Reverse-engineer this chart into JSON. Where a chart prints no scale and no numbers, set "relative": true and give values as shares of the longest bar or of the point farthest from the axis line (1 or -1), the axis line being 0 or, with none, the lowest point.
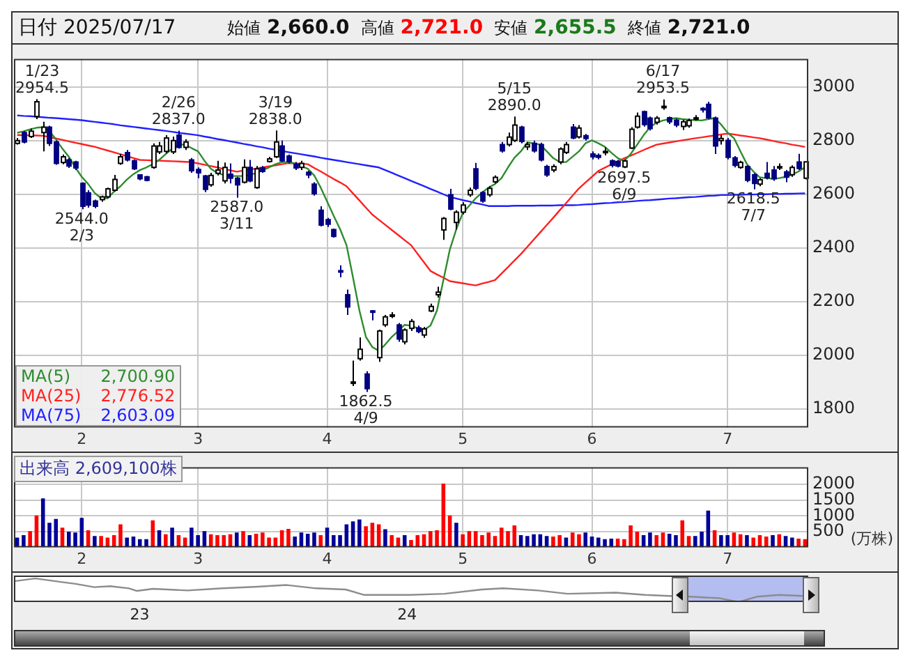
{
  "chart_data": [
    {
      "type": "candlestick",
      "title": "日付 2025/07/17",
      "annotations": [
        "始値 2,660.0",
        "高値 2,721.0",
        "安値 2,655.5",
        "終値 2,721.0",
        "2,700.90",
        "2,776.52",
        "2,603.09",
        {
          "text": "1/23 2954.5",
          "y": 2954.5
        },
        {
          "text": "2544.0 2/3",
          "y": 2544
        },
        {
          "text": "2/26 2837.0",
          "y": 2837
        },
        {
          "text": "2587.0 3/11",
          "y": 2587
        },
        {
          "text": "3/19 2838.0",
          "y": 2838
        },
        {
          "text": "1862.5 4/9",
          "y": 1862.5
        },
        {
          "text": "5/15 2890.0",
          "y": 2890
        },
        {
          "text": "2697.5 6/9",
          "y": 2697.5
        },
        {
          "text": "6/17 2953.5",
          "y": 2953.5
        },
        {
          "text": "2618.5 7/7",
          "y": 2618.5
        }
      ],
      "categories": [
        null,
        null,
        null,
        null,
        null,
        null,
        null,
        null,
        null,
        null,
        "2",
        null,
        null,
        null,
        null,
        null,
        null,
        null,
        null,
        null,
        null,
        null,
        null,
        null,
        null,
        null,
        null,
        null,
        "3",
        null,
        null,
        null,
        null,
        null,
        null,
        null,
        null,
        null,
        null,
        null,
        null,
        null,
        null,
        null,
        null,
        null,
        null,
        null,
        "4",
        null,
        null,
        null,
        null,
        null,
        null,
        null,
        null,
        null,
        null,
        null,
        null,
        null,
        null,
        null,
        null,
        null,
        null,
        null,
        null,
        "5",
        null,
        null,
        null,
        null,
        null,
        null,
        null,
        null,
        null,
        null,
        null,
        null,
        null,
        null,
        null,
        null,
        null,
        null,
        null,
        "6",
        null,
        null,
        null,
        null,
        null,
        null,
        null,
        null,
        null,
        null,
        null,
        null,
        null,
        null,
        null,
        null,
        null,
        null,
        null,
        null,
        "7",
        null,
        null,
        null,
        null,
        null,
        null,
        null,
        null,
        null,
        null,
        null,
        null
      ],
      "ohlc": [
        [
          2790,
          2810,
          2785,
          2800
        ],
        [
          2830,
          2835,
          2790,
          2795
        ],
        [
          2815,
          2845,
          2810,
          2835
        ],
        [
          2890,
          2954.5,
          2880,
          2945
        ],
        [
          2830,
          2870,
          2760,
          2850
        ],
        [
          2850,
          2855,
          2780,
          2790
        ],
        [
          2795,
          2800,
          2710,
          2715
        ],
        [
          2718,
          2748,
          2712,
          2740
        ],
        [
          2728,
          2735,
          2698,
          2705
        ],
        [
          2720,
          2725,
          2690,
          2698
        ],
        [
          2640,
          2645,
          2544,
          2555
        ],
        [
          2605,
          2615,
          2550,
          2560
        ],
        [
          2575,
          2580,
          2548,
          2555
        ],
        [
          2580,
          2595,
          2572,
          2590
        ],
        [
          2590,
          2625,
          2585,
          2620
        ],
        [
          2615,
          2672,
          2610,
          2655
        ],
        [
          2715,
          2750,
          2710,
          2740
        ],
        [
          2755,
          2765,
          2722,
          2728
        ],
        [
          2725,
          2730,
          2690,
          2695
        ],
        [
          2672,
          2675,
          2652,
          2658
        ],
        [
          2665,
          2668,
          2648,
          2652
        ],
        [
          2700,
          2790,
          2695,
          2780
        ],
        [
          2758,
          2795,
          2750,
          2780
        ],
        [
          2760,
          2820,
          2752,
          2810
        ],
        [
          2758,
          2815,
          2750,
          2800
        ],
        [
          2820,
          2837,
          2770,
          2775
        ],
        [
          2775,
          2805,
          2765,
          2795
        ],
        [
          2728,
          2735,
          2680,
          2688
        ],
        [
          2692,
          2700,
          2660,
          2680
        ],
        [
          2668,
          2672,
          2608,
          2618
        ],
        [
          2635,
          2680,
          2628,
          2670
        ],
        [
          2678,
          2725,
          2670,
          2690
        ],
        [
          2650,
          2718,
          2640,
          2700
        ],
        [
          2675,
          2715,
          2640,
          2660
        ],
        [
          2660,
          2665,
          2587,
          2635
        ],
        [
          2645,
          2730,
          2640,
          2700
        ],
        [
          2700,
          2728,
          2645,
          2650
        ],
        [
          2625,
          2705,
          2620,
          2695
        ],
        [
          2698,
          2705,
          2680,
          2685
        ],
        [
          2722,
          2740,
          2718,
          2732
        ],
        [
          2740,
          2838,
          2735,
          2795
        ],
        [
          2780,
          2800,
          2720,
          2725
        ],
        [
          2742,
          2748,
          2715,
          2722
        ],
        [
          2712,
          2720,
          2690,
          2698
        ],
        [
          2700,
          2725,
          2690,
          2715
        ],
        [
          2682,
          2688,
          2660,
          2672
        ],
        [
          2638,
          2645,
          2595,
          2602
        ],
        [
          2540,
          2555,
          2480,
          2485
        ],
        [
          2505,
          2512,
          2478,
          2488
        ],
        [
          2468,
          2472,
          2438,
          2443
        ],
        [
          2315,
          2335,
          2290,
          2310
        ],
        [
          2225,
          2245,
          2150,
          2180
        ],
        [
          1895,
          1980,
          1885,
          1900
        ],
        [
          1987,
          2066,
          1980,
          2022
        ],
        [
          1930,
          1940,
          1862.5,
          1875
        ],
        [
          2165,
          2168,
          2130,
          2162
        ],
        [
          1991,
          2095,
          1975,
          2090
        ],
        [
          2113,
          2150,
          2105,
          2143
        ],
        [
          2148,
          2160,
          2138,
          2150
        ],
        [
          2113,
          2120,
          2050,
          2060
        ],
        [
          2050,
          2100,
          2040,
          2094
        ],
        [
          2100,
          2135,
          2090,
          2126
        ],
        [
          2102,
          2110,
          2082,
          2088
        ],
        [
          2075,
          2105,
          2065,
          2098
        ],
        [
          2165,
          2192,
          2160,
          2182
        ],
        [
          2225,
          2255,
          2215,
          2235
        ],
        [
          2467,
          2515,
          2430,
          2510
        ],
        [
          2598,
          2620,
          2540,
          2545
        ],
        [
          2495,
          2540,
          2468,
          2533
        ],
        [
          2533,
          2570,
          2525,
          2560
        ],
        [
          2598,
          2625,
          2590,
          2615
        ],
        [
          2695,
          2717,
          2615,
          2622
        ],
        [
          2606,
          2612,
          2568,
          2575
        ],
        [
          2598,
          2630,
          2590,
          2622
        ],
        [
          2646,
          2670,
          2640,
          2663
        ],
        [
          2785,
          2795,
          2755,
          2762
        ],
        [
          2785,
          2830,
          2778,
          2813
        ],
        [
          2801,
          2890,
          2795,
          2858
        ],
        [
          2850,
          2855,
          2790,
          2797
        ],
        [
          2777,
          2795,
          2765,
          2785
        ],
        [
          2790,
          2800,
          2755,
          2762
        ],
        [
          2785,
          2792,
          2722,
          2728
        ],
        [
          2703,
          2710,
          2665,
          2672
        ],
        [
          2690,
          2712,
          2682,
          2703
        ],
        [
          2720,
          2775,
          2712,
          2769
        ],
        [
          2756,
          2795,
          2750,
          2785
        ],
        [
          2850,
          2862,
          2805,
          2810
        ],
        [
          2814,
          2858,
          2808,
          2847
        ],
        [
          2818,
          2825,
          2800,
          2808
        ],
        [
          2750,
          2760,
          2730,
          2740
        ],
        [
          2745,
          2752,
          2730,
          2738
        ],
        [
          2755,
          2775,
          2745,
          2760
        ],
        [
          2725,
          2730,
          2700,
          2708
        ],
        [
          2722,
          2728,
          2700,
          2705
        ],
        [
          2702,
          2730,
          2697.5,
          2724
        ],
        [
          2772,
          2850,
          2768,
          2842
        ],
        [
          2850,
          2905,
          2845,
          2891
        ],
        [
          2908,
          2912,
          2852,
          2860
        ],
        [
          2884,
          2890,
          2838,
          2845
        ],
        [
          2868,
          2892,
          2860,
          2884
        ],
        [
          2925,
          2953.5,
          2915,
          2928
        ],
        [
          2885,
          2890,
          2862,
          2870
        ],
        [
          2876,
          2882,
          2850,
          2858
        ],
        [
          2853,
          2878,
          2840,
          2870
        ],
        [
          2855,
          2882,
          2848,
          2875
        ],
        [
          2880,
          2895,
          2875,
          2885
        ],
        [
          2920,
          2925,
          2905,
          2915
        ],
        [
          2935,
          2945,
          2880,
          2885
        ],
        [
          2884,
          2890,
          2750,
          2780
        ],
        [
          2800,
          2820,
          2785,
          2808
        ],
        [
          2801,
          2810,
          2730,
          2738
        ],
        [
          2736,
          2742,
          2700,
          2708
        ],
        [
          2700,
          2725,
          2695,
          2719
        ],
        [
          2703,
          2708,
          2645,
          2652
        ],
        [
          2673,
          2678,
          2618.5,
          2640
        ],
        [
          2638,
          2660,
          2630,
          2654
        ],
        [
          2678,
          2720,
          2655,
          2662
        ],
        [
          2690,
          2705,
          2650,
          2658
        ],
        [
          2698,
          2715,
          2690,
          2703
        ],
        [
          2683,
          2690,
          2645,
          2664
        ],
        [
          2673,
          2708,
          2665,
          2700
        ],
        [
          2720,
          2751,
          2690,
          2696
        ],
        [
          2660,
          2721,
          2655.5,
          2721
        ]
      ],
      "colors": [
        "#ffffff",
        "#000080",
        "#ffffff",
        "#ffffff",
        "#ffffff",
        "#000080",
        "#000080",
        "#ffffff",
        "#000080",
        "#000080",
        "#000080",
        "#000080",
        "#000080",
        "#ffffff",
        "#ffffff",
        "#ffffff",
        "#ffffff",
        "#000080",
        "#000080",
        "#000080",
        "#000080",
        "#ffffff",
        "#ffffff",
        "#ffffff",
        "#ffffff",
        "#000080",
        "#ffffff",
        "#000080",
        "#000080",
        "#000080",
        "#ffffff",
        "#ffffff",
        "#ffffff",
        "#000080",
        "#000080",
        "#ffffff",
        "#000080",
        "#ffffff",
        "#000080",
        "#ffffff",
        "#ffffff",
        "#000080",
        "#000080",
        "#000080",
        "#ffffff",
        "#000080",
        "#000080",
        "#000080",
        "#000080",
        "#000080",
        "#000080",
        "#000080",
        "#ffffff",
        "#ffffff",
        "#000080",
        "#000080",
        "#ffffff",
        "#ffffff",
        "#ffffff",
        "#000080",
        "#ffffff",
        "#ffffff",
        "#000080",
        "#ffffff",
        "#ffffff",
        "#ffffff",
        "#ffffff",
        "#000080",
        "#ffffff",
        "#ffffff",
        "#ffffff",
        "#000080",
        "#000080",
        "#ffffff",
        "#ffffff",
        "#000080",
        "#ffffff",
        "#ffffff",
        "#000080",
        "#ffffff",
        "#000080",
        "#000080",
        "#000080",
        "#ffffff",
        "#ffffff",
        "#ffffff",
        "#000080",
        "#ffffff",
        "#000080",
        "#000080",
        "#000080",
        "#ffffff",
        "#000080",
        "#000080",
        "#ffffff",
        "#ffffff",
        "#ffffff",
        "#000080",
        "#000080",
        "#ffffff",
        "#ffffff",
        "#000080",
        "#000080",
        "#ffffff",
        "#ffffff",
        "#ffffff",
        "#000080",
        "#000080",
        "#000080",
        "#ffffff",
        "#000080",
        "#000080",
        "#ffffff",
        "#000080",
        "#000080",
        "#ffffff",
        "#000080",
        "#000080",
        "#ffffff",
        "#000080",
        "#ffffff",
        "#000080",
        "#ffffff"
      ],
      "series": [
        {
          "name": "MA(5)",
          "type": "line",
          "color": "#2e8b2e",
          "values": [
            2829,
            2835,
            2842,
            2848,
            2850,
            2835,
            2805,
            2770,
            2740,
            2700,
            2665,
            2638,
            2605,
            2585,
            2585,
            2610,
            2630,
            2655,
            2675,
            2690,
            2700,
            2712,
            2728,
            2750,
            2770,
            2785,
            2785,
            2772,
            2760,
            2725,
            2695,
            2679,
            2672,
            2668,
            2668,
            2668,
            2672,
            2679,
            2690,
            2700,
            2712,
            2720,
            2720,
            2715,
            2705,
            2695,
            2670,
            2625,
            2573,
            2520,
            2470,
            2410,
            2290,
            2166,
            2068,
            2030,
            2016,
            2040,
            2068,
            2090,
            2113,
            2110,
            2100,
            2094,
            2110,
            2166,
            2280,
            2394,
            2470,
            2530,
            2557,
            2585,
            2606,
            2625,
            2638,
            2660,
            2700,
            2736,
            2760,
            2793,
            2790,
            2785,
            2760,
            2735,
            2720,
            2720,
            2740,
            2760,
            2790,
            2801,
            2790,
            2777,
            2755,
            2735,
            2724,
            2750,
            2785,
            2820,
            2850,
            2867,
            2875,
            2880,
            2884,
            2880,
            2878,
            2876,
            2875,
            2880,
            2884,
            2860,
            2830,
            2809,
            2760,
            2712,
            2685,
            2663,
            2660,
            2658,
            2660,
            2665,
            2673,
            2685,
            2700.9
          ]
        },
        {
          "name": "MA(25)",
          "type": "line",
          "color": "#ff2020",
          "values": [
            2821,
            2820,
            2820,
            2819,
            2818,
            2813,
            2808,
            2803,
            2797,
            2792,
            2787,
            2782,
            2777,
            2770,
            2763,
            2756,
            2749,
            2742,
            2735,
            2728,
            2727,
            2726,
            2725,
            2724,
            2723,
            2722,
            2721,
            2720,
            2715,
            2710,
            2705,
            2700,
            2694,
            2689,
            2684,
            2688,
            2692,
            2696,
            2700,
            2704,
            2708,
            2712,
            2716,
            2715,
            2714,
            2712,
            2698,
            2685,
            2671,
            2657,
            2644,
            2630,
            2603,
            2577,
            2550,
            2524,
            2505,
            2486,
            2467,
            2448,
            2429,
            2410,
            2378,
            2346,
            2314,
            2301,
            2289,
            2276,
            2272,
            2268,
            2264,
            2260,
            2267,
            2273,
            2280,
            2304,
            2328,
            2353,
            2377,
            2404,
            2431,
            2458,
            2485,
            2512,
            2540,
            2567,
            2595,
            2622,
            2644,
            2665,
            2687,
            2699,
            2711,
            2722,
            2734,
            2744,
            2754,
            2765,
            2775,
            2785,
            2789,
            2793,
            2797,
            2801,
            2805,
            2809,
            2812,
            2816,
            2819,
            2823,
            2826,
            2823,
            2819,
            2816,
            2812,
            2809,
            2804,
            2799,
            2794,
            2790,
            2785,
            2781,
            2776.52
          ]
        },
        {
          "name": "MA(75)",
          "type": "line",
          "color": "#2020ff",
          "values": [
            2894,
            2892,
            2891,
            2889,
            2887,
            2885,
            2884,
            2882,
            2880,
            2878,
            2876,
            2873,
            2870,
            2867,
            2864,
            2861,
            2857,
            2854,
            2851,
            2848,
            2845,
            2842,
            2839,
            2836,
            2833,
            2829,
            2826,
            2823,
            2820,
            2815,
            2811,
            2806,
            2802,
            2797,
            2793,
            2788,
            2784,
            2779,
            2775,
            2770,
            2766,
            2761,
            2757,
            2753,
            2749,
            2745,
            2741,
            2736,
            2732,
            2728,
            2724,
            2720,
            2716,
            2712,
            2708,
            2704,
            2700,
            2690,
            2680,
            2670,
            2660,
            2650,
            2640,
            2630,
            2620,
            2610,
            2600,
            2590,
            2584,
            2578,
            2573,
            2567,
            2562,
            2556,
            2556,
            2556,
            2556,
            2557,
            2557,
            2557,
            2557,
            2558,
            2558,
            2558,
            2559,
            2559,
            2559,
            2560,
            2562,
            2563,
            2565,
            2567,
            2568,
            2570,
            2571,
            2573,
            2575,
            2577,
            2578,
            2580,
            2582,
            2584,
            2585,
            2587,
            2589,
            2590,
            2592,
            2594,
            2595,
            2597,
            2597,
            2598,
            2598,
            2599,
            2599,
            2600,
            2600,
            2601,
            2601,
            2602,
            2602,
            2603,
            2603.09
          ]
        }
      ],
      "ylim": [
        1730,
        3105
      ],
      "yticks": [
        1800,
        2000,
        2200,
        2400,
        2600,
        2800,
        3000
      ],
      "grid": true,
      "legend": "bottom left",
      "marker": "none"
    },
    {
      "type": "bar",
      "title": "出来高 2,609,100株",
      "ylabel": "(万株)",
      "categories": [
        null,
        null,
        null,
        null,
        null,
        null,
        null,
        null,
        null,
        null,
        "2",
        null,
        null,
        null,
        null,
        null,
        null,
        null,
        null,
        null,
        null,
        null,
        null,
        null,
        null,
        null,
        null,
        null,
        "3",
        null,
        null,
        null,
        null,
        null,
        null,
        null,
        null,
        null,
        null,
        null,
        null,
        null,
        null,
        null,
        null,
        null,
        null,
        null,
        "4",
        null,
        null,
        null,
        null,
        null,
        null,
        null,
        null,
        null,
        null,
        null,
        null,
        null,
        null,
        null,
        null,
        null,
        null,
        null,
        null,
        "5",
        null,
        null,
        null,
        null,
        null,
        null,
        null,
        null,
        null,
        null,
        null,
        null,
        null,
        null,
        null,
        null,
        null,
        null,
        null,
        "6",
        null,
        null,
        null,
        null,
        null,
        null,
        null,
        null,
        null,
        null,
        null,
        null,
        null,
        null,
        null,
        null,
        null,
        null,
        null,
        null,
        "7",
        null,
        null,
        null,
        null,
        null,
        null,
        null,
        null,
        null,
        null,
        null,
        null
      ],
      "values": [
        310,
        390,
        515,
        1015,
        1560,
        780,
        905,
        625,
        500,
        470,
        935,
        545,
        360,
        360,
        310,
        390,
        735,
        310,
        345,
        265,
        265,
        860,
        545,
        420,
        625,
        390,
        310,
        625,
        390,
        515,
        420,
        390,
        390,
        420,
        470,
        515,
        390,
        435,
        470,
        310,
        310,
        545,
        590,
        345,
        470,
        435,
        470,
        390,
        625,
        390,
        390,
        735,
        825,
        890,
        670,
        780,
        735,
        575,
        390,
        310,
        390,
        235,
        390,
        420,
        515,
        545,
        2030,
        1015,
        780,
        420,
        515,
        515,
        390,
        470,
        360,
        625,
        515,
        700,
        390,
        360,
        420,
        420,
        360,
        345,
        390,
        310,
        470,
        420,
        470,
        345,
        310,
        265,
        280,
        280,
        265,
        700,
        500,
        390,
        470,
        390,
        470,
        435,
        390,
        860,
        360,
        360,
        500,
        1170,
        545,
        390,
        390,
        470,
        420,
        390,
        310,
        390,
        345,
        390,
        420,
        360,
        310,
        280,
        260.91
      ],
      "colors": [
        "#000099",
        "#000099",
        "#ff0000",
        "#ff0000",
        "#000099",
        "#000099",
        "#000099",
        "#ff0000",
        "#000099",
        "#000099",
        "#000099",
        "#ff0000",
        "#000099",
        "#ff0000",
        "#ff0000",
        "#ff0000",
        "#ff0000",
        "#000099",
        "#000099",
        "#000099",
        "#000099",
        "#ff0000",
        "#000099",
        "#ff0000",
        "#000099",
        "#ff0000",
        "#ff0000",
        "#000099",
        "#000099",
        "#000099",
        "#ff0000",
        "#ff0000",
        "#ff0000",
        "#ff0000",
        "#000099",
        "#ff0000",
        "#000099",
        "#ff0000",
        "#ff0000",
        "#ff0000",
        "#ff0000",
        "#ff0000",
        "#ff0000",
        "#000099",
        "#000099",
        "#000099",
        "#000099",
        "#ff0000",
        "#000099",
        "#000099",
        "#000099",
        "#000099",
        "#000099",
        "#000099",
        "#ff0000",
        "#ff0000",
        "#ff0000",
        "#000099",
        "#ff0000",
        "#ff0000",
        "#000099",
        "#ff0000",
        "#ff0000",
        "#ff0000",
        "#ff0000",
        "#ff0000",
        "#ff0000",
        "#ff0000",
        "#000099",
        "#ff0000",
        "#ff0000",
        "#ff0000",
        "#ff0000",
        "#ff0000",
        "#ff0000",
        "#ff0000",
        "#ff0000",
        "#ff0000",
        "#000099",
        "#000099",
        "#000099",
        "#000099",
        "#000099",
        "#ff0000",
        "#ff0000",
        "#000099",
        "#ff0000",
        "#ff0000",
        "#000099",
        "#000099",
        "#000099",
        "#000099",
        "#000099",
        "#ff0000",
        "#ff0000",
        "#ff0000",
        "#ff0000",
        "#000099",
        "#000099",
        "#ff0000",
        "#ff0000",
        "#000099",
        "#000099",
        "#ff0000",
        "#ff0000",
        "#000099",
        "#000099",
        "#000099",
        "#ff0000",
        "#000099",
        "#000099",
        "#ff0000",
        "#ff0000",
        "#000099",
        "#ff0000",
        "#ff0000",
        "#ff0000",
        "#000099",
        "#ff0000",
        "#000099",
        "#000099",
        "#ff0000",
        "#ff0000"
      ],
      "ylim": [
        0,
        2550
      ],
      "yticks": [
        500,
        1000,
        1500,
        2000
      ],
      "grid": true
    },
    {
      "type": "line",
      "relative": true,
      "color": "#8c8c8c",
      "marker": "none",
      "tick_labels": "x",
      "x": [
        2022.53,
        2022.61,
        2022.7,
        2022.76,
        2022.83,
        2022.89,
        2022.96,
        2022.99,
        2023.05,
        2023.18,
        2023.31,
        2023.44,
        2023.55,
        2023.66,
        2023.77,
        2023.84,
        2024.01,
        2024.14,
        2024.28,
        2024.36,
        2024.49,
        2024.6,
        2024.78,
        2024.89,
        2024.98,
        2025.06,
        2025.17,
        2025.24,
        2025.31,
        2025.39,
        2025.48
      ],
      "values": [
        0.88,
        1,
        0.86,
        0.77,
        0.63,
        0.67,
        0.58,
        0.47,
        0.56,
        0.49,
        0.58,
        0.65,
        0.72,
        0.58,
        0.53,
        0.3,
        0.3,
        0.35,
        0.53,
        0.58,
        0.49,
        0.35,
        0.4,
        0.3,
        0.26,
        0.23,
        0.16,
        0,
        0.23,
        0.3,
        0.26
      ],
      "xlim": [
        2022.53,
        2025.5
      ],
      "xticks": [
        {
          "value": 2023,
          "label": "23"
        },
        {
          "value": 2024,
          "label": "24"
        }
      ],
      "bands": [
        {
          "axis": "x",
          "from": 2025.05,
          "to": 2025.48,
          "color": "#b4bdf0"
        }
      ]
    }
  ]
}
